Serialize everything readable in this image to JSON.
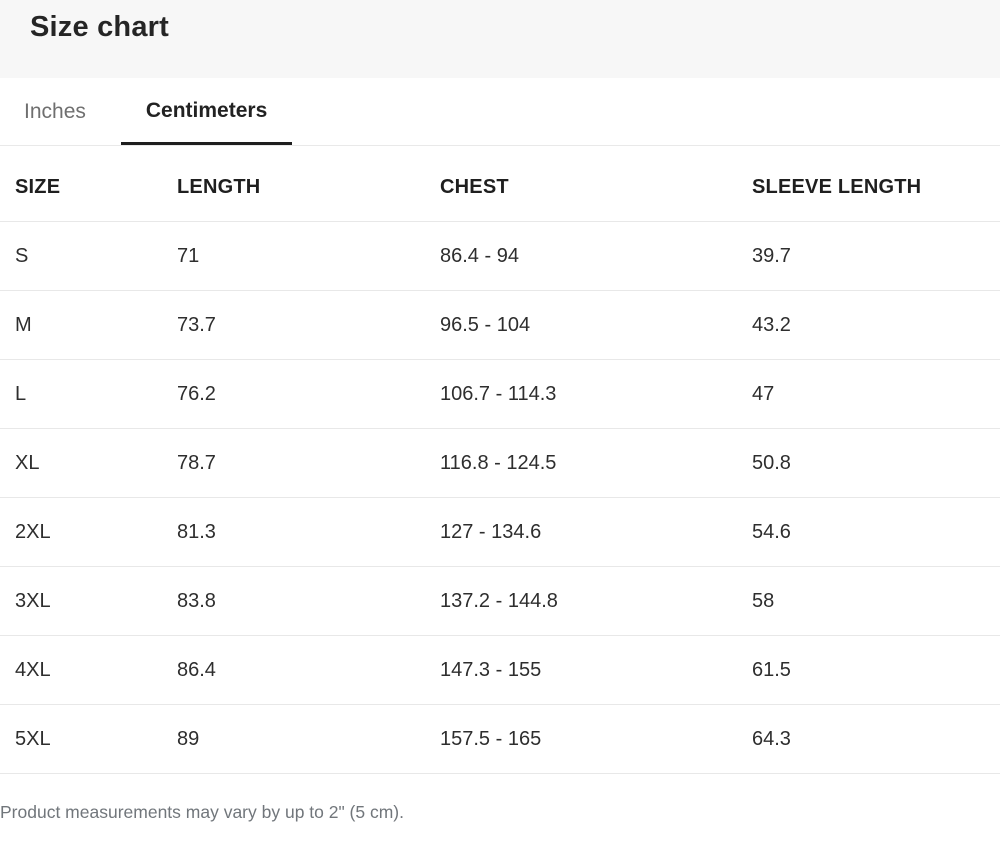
{
  "page": {
    "title": "Size chart"
  },
  "tabs": [
    {
      "label": "Inches",
      "active": false
    },
    {
      "label": "Centimeters",
      "active": true
    }
  ],
  "table": {
    "columns": [
      "SIZE",
      "LENGTH",
      "CHEST",
      "SLEEVE LENGTH"
    ],
    "rows": [
      {
        "size": "S",
        "length": "71",
        "chest": "86.4 - 94",
        "sleeve": "39.7"
      },
      {
        "size": "M",
        "length": "73.7",
        "chest": "96.5 - 104",
        "sleeve": "43.2"
      },
      {
        "size": "L",
        "length": "76.2",
        "chest": "106.7 - 114.3",
        "sleeve": "47"
      },
      {
        "size": "XL",
        "length": "78.7",
        "chest": "116.8 - 124.5",
        "sleeve": "50.8"
      },
      {
        "size": "2XL",
        "length": "81.3",
        "chest": "127 - 134.6",
        "sleeve": "54.6"
      },
      {
        "size": "3XL",
        "length": "83.8",
        "chest": "137.2 - 144.8",
        "sleeve": "58"
      },
      {
        "size": "4XL",
        "length": "86.4",
        "chest": "147.3 - 155",
        "sleeve": "61.5"
      },
      {
        "size": "5XL",
        "length": "89",
        "chest": "157.5 - 165",
        "sleeve": "64.3"
      }
    ]
  },
  "footer": {
    "note": "Product measurements may vary by up to 2\" (5 cm)."
  },
  "colors": {
    "header_band": "#f7f7f7",
    "active_tab_underline": "#1e1e1e",
    "inactive_tab_text": "#6f6f6f",
    "row_divider": "#e8e8e8",
    "note_text": "#71767b"
  }
}
